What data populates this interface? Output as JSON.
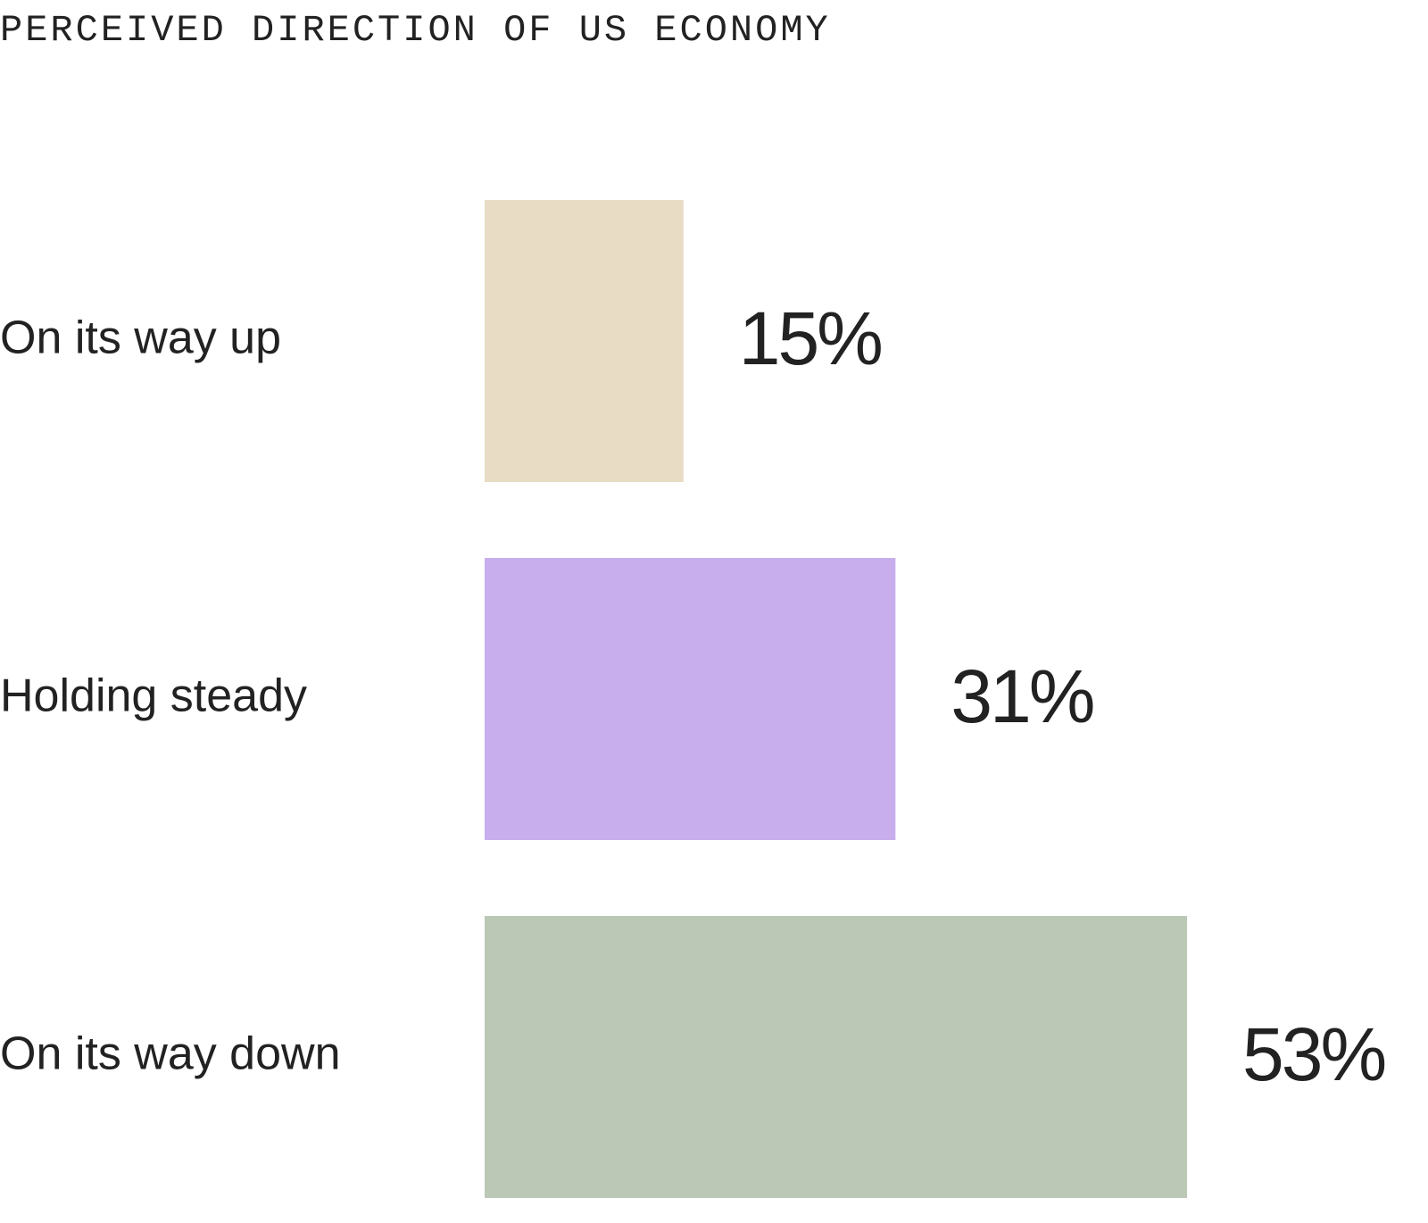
{
  "chart_data": {
    "type": "bar",
    "orientation": "horizontal",
    "title": "PERCEIVED DIRECTION OF US ECONOMY",
    "categories": [
      "On its way up",
      "Holding steady",
      "On its way down"
    ],
    "values": [
      15,
      31,
      53
    ],
    "value_labels": [
      "15%",
      "31%",
      "53%"
    ],
    "colors": [
      "#e8dcc5",
      "#c8aeed",
      "#bbc8b5"
    ]
  }
}
